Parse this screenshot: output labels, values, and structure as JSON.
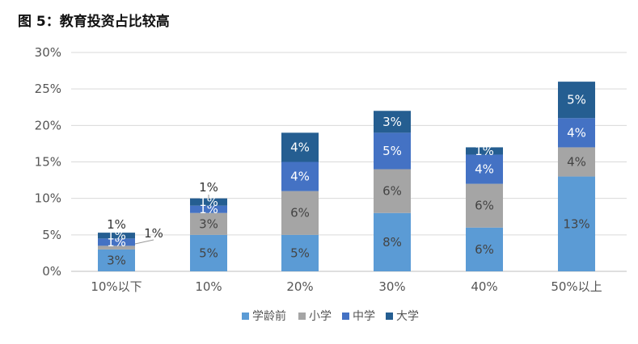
{
  "title": "图 5：教育投资占比较高",
  "chart_data": {
    "type": "bar",
    "stacked": true,
    "title": "图 5：教育投资占比较高",
    "categories": [
      "10%以下",
      "10%",
      "20%",
      "30%",
      "40%",
      "50%以上"
    ],
    "ylim": [
      0,
      30
    ],
    "yticks": [
      "0%",
      "5%",
      "10%",
      "15%",
      "20%",
      "25%",
      "30%"
    ],
    "grid": true,
    "legend_position": "bottom",
    "series": [
      {
        "name": "学龄前",
        "color": "#5b9bd5",
        "values": [
          3,
          5,
          5,
          8,
          6,
          13
        ],
        "labels": [
          "3%",
          "5%",
          "5%",
          "8%",
          "6%",
          "13%"
        ]
      },
      {
        "name": "小学",
        "color": "#a5a5a5",
        "values": [
          0.5,
          3,
          6,
          6,
          6,
          4
        ],
        "labels": [
          "",
          "3%",
          "6%",
          "6%",
          "6%",
          "4%"
        ]
      },
      {
        "name": "中学",
        "color": "#4472c4",
        "values": [
          1,
          1,
          4,
          5,
          4,
          4
        ],
        "labels": [
          "1%",
          "1%",
          "4%",
          "5%",
          "4%",
          "4%"
        ]
      },
      {
        "name": "大学",
        "color": "#255e91",
        "values": [
          0.8,
          1,
          4,
          3,
          1,
          5
        ],
        "labels": [
          "1%",
          "1%",
          "4%",
          "3%",
          "1%",
          "5%"
        ]
      }
    ],
    "annotations": [
      "1%",
      "1%",
      "1%"
    ]
  }
}
